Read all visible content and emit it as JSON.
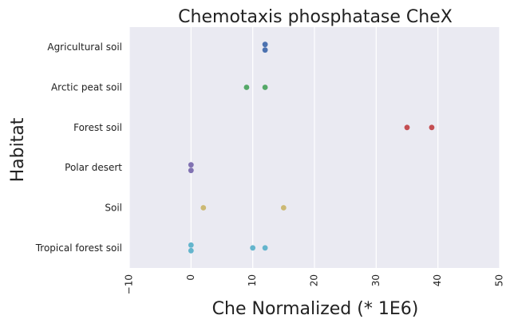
{
  "chart_data": {
    "type": "scatter",
    "title": "Chemotaxis phosphatase CheX",
    "xlabel": "Che Normalized (* 1E6)",
    "ylabel": "Habitat",
    "xlim": [
      -10,
      50
    ],
    "xticks": [
      "−10",
      "0",
      "10",
      "20",
      "30",
      "40",
      "50"
    ],
    "xtick_values": [
      -10,
      0,
      10,
      20,
      30,
      40,
      50
    ],
    "grid": true,
    "legend": "none",
    "categories": [
      "Agricultural soil",
      "Arctic peat soil",
      "Forest soil",
      "Polar desert",
      "Soil",
      "Tropical forest soil"
    ],
    "series": [
      {
        "category": "Agricultural soil",
        "color": "#4c72b0",
        "values": [
          12,
          12
        ]
      },
      {
        "category": "Arctic peat soil",
        "color": "#55a868",
        "values": [
          9,
          12
        ]
      },
      {
        "category": "Forest soil",
        "color": "#c44e52",
        "values": [
          35,
          39
        ]
      },
      {
        "category": "Polar desert",
        "color": "#8172b2",
        "values": [
          0,
          0
        ]
      },
      {
        "category": "Soil",
        "color": "#ccb974",
        "values": [
          2,
          15
        ]
      },
      {
        "category": "Tropical forest soil",
        "color": "#64b5cd",
        "values": [
          0,
          0,
          10,
          12
        ]
      }
    ],
    "colors": {
      "plot_background": "#eaeaf2",
      "grid": "#ffffff"
    }
  }
}
